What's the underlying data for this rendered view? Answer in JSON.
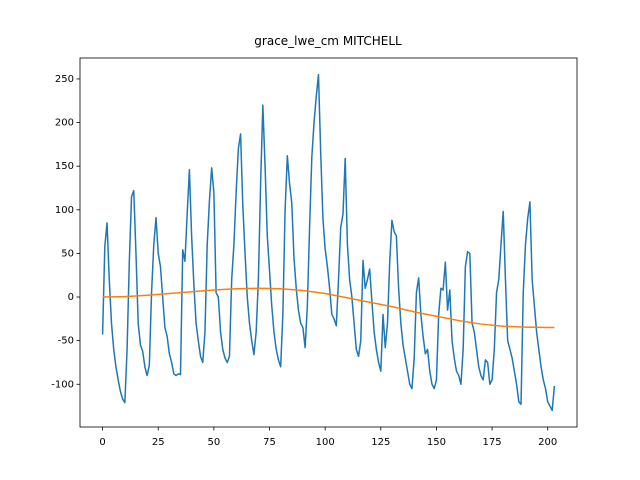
{
  "chart_data": {
    "type": "line",
    "title": "grace_lwe_cm MITCHELL",
    "xlim": [
      -10.15,
      213.15
    ],
    "xticks": [
      0,
      25,
      50,
      75,
      100,
      125,
      150,
      175,
      200
    ],
    "ylim": [
      -149,
      274
    ],
    "yticks": [
      -100,
      -50,
      0,
      50,
      100,
      150,
      200,
      250
    ],
    "grid": false,
    "series": [
      {
        "color": "#1f77b4",
        "values": [
          -43,
          58,
          85,
          20,
          -30,
          -60,
          -80,
          -95,
          -108,
          -117,
          -121,
          -60,
          40,
          115,
          122,
          50,
          -30,
          -55,
          -62,
          -80,
          -90,
          -78,
          5,
          60,
          91,
          50,
          35,
          0,
          -35,
          -45,
          -65,
          -75,
          -88,
          -90,
          -88,
          -89,
          54,
          41,
          95,
          146,
          70,
          15,
          -30,
          -50,
          -68,
          -75,
          -40,
          60,
          110,
          148,
          120,
          5,
          0,
          -40,
          -60,
          -70,
          -75,
          -68,
          20,
          60,
          120,
          170,
          187,
          105,
          50,
          0,
          -30,
          -50,
          -66,
          -40,
          20,
          130,
          220,
          150,
          70,
          30,
          -10,
          -40,
          -60,
          -72,
          -80,
          -20,
          100,
          162,
          130,
          108,
          45,
          10,
          -15,
          -30,
          -35,
          -58,
          -10,
          80,
          160,
          200,
          230,
          255,
          165,
          90,
          55,
          35,
          10,
          -20,
          -25,
          -33,
          20,
          80,
          95,
          159,
          60,
          20,
          0,
          -30,
          -60,
          -68,
          -50,
          42,
          10,
          20,
          32,
          -5,
          -40,
          -60,
          -75,
          -85,
          -20,
          -58,
          -30,
          40,
          88,
          75,
          70,
          10,
          -30,
          -55,
          -70,
          -85,
          -100,
          -105,
          -70,
          5,
          22,
          -20,
          -45,
          -65,
          -60,
          -85,
          -100,
          -105,
          -95,
          -20,
          10,
          8,
          40,
          -15,
          8,
          -50,
          -70,
          -85,
          -90,
          -100,
          -60,
          35,
          52,
          50,
          -30,
          -40,
          -60,
          -80,
          -90,
          -95,
          -72,
          -75,
          -100,
          -95,
          -60,
          5,
          20,
          60,
          98,
          20,
          -50,
          -60,
          -70,
          -85,
          -100,
          -120,
          -123,
          5,
          60,
          90,
          109,
          20,
          -10,
          -40,
          -60,
          -80,
          -95,
          -105,
          -120,
          -125,
          -130,
          -102
        ]
      },
      {
        "color": "#ff7f0e",
        "x": [
          0,
          10,
          20,
          30,
          40,
          50,
          60,
          70,
          80,
          90,
          100,
          110,
          120,
          130,
          140,
          150,
          160,
          170,
          180,
          190,
          200,
          203
        ],
        "values": [
          0,
          0.5,
          2,
          4,
          6,
          8,
          9.5,
          10,
          9.5,
          7.5,
          4,
          -1,
          -6,
          -11,
          -17,
          -22,
          -27,
          -31,
          -33.5,
          -34.5,
          -35,
          -35
        ]
      }
    ]
  }
}
